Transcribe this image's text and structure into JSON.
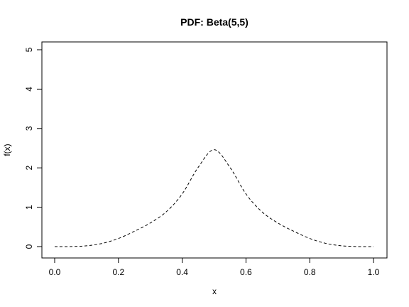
{
  "chart_data": {
    "type": "line",
    "title": "PDF: Beta(5,5)",
    "xlabel": "x",
    "ylabel": "f(x)",
    "xlim": [
      0,
      1
    ],
    "ylim": [
      0,
      5
    ],
    "x_ticks": [
      "0.0",
      "0.2",
      "0.4",
      "0.6",
      "0.8",
      "1.0"
    ],
    "y_ticks": [
      "0",
      "1",
      "2",
      "3",
      "4",
      "5"
    ],
    "line_style": "dashed",
    "line_color": "#000000",
    "grid": false,
    "series": [
      {
        "x": [
          0.0,
          0.05,
          0.1,
          0.15,
          0.2,
          0.25,
          0.3,
          0.35,
          0.4,
          0.45,
          0.5,
          0.55,
          0.6,
          0.65,
          0.7,
          0.75,
          0.8,
          0.85,
          0.9,
          0.95,
          1.0
        ],
        "values": [
          0.0,
          0.0015,
          0.0204,
          0.0823,
          0.2064,
          0.3892,
          0.6002,
          0.8844,
          1.3377,
          2.011,
          2.4609,
          2.011,
          1.3377,
          0.8844,
          0.6002,
          0.3892,
          0.2064,
          0.0823,
          0.0204,
          0.0015,
          0.0
        ]
      }
    ]
  }
}
